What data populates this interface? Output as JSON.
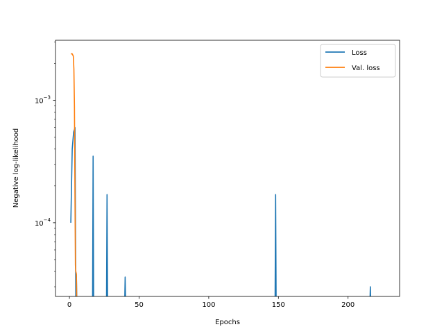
{
  "chart_data": {
    "type": "line",
    "xlabel": "Epochs",
    "ylabel": "Negative log-likelihood",
    "yscale": "log",
    "xlim": [
      -10,
      237
    ],
    "ylim": [
      2.5e-05,
      0.0031
    ],
    "x_ticks": [
      0,
      50,
      100,
      150,
      200
    ],
    "x_tick_labels": [
      "0",
      "50",
      "100",
      "150",
      "200"
    ],
    "y_ticks": [
      0.0001,
      0.001
    ],
    "y_tick_labels": [
      {
        "base": "10",
        "exp": "−4"
      },
      {
        "base": "10",
        "exp": "−3"
      }
    ],
    "grid": false,
    "legend_position": "upper right",
    "series": [
      {
        "name": "Loss",
        "color": "#1f77b4",
        "x": [
          1,
          2,
          3,
          4,
          4.6,
          5,
          5.4,
          16.6,
          17,
          17.4,
          26.6,
          27,
          27.4,
          39.6,
          40,
          40.4,
          147.6,
          148,
          148.4,
          215.6,
          216,
          216.4
        ],
        "y": [
          0.0001,
          0.0004,
          0.00055,
          0.0006,
          2e-05,
          3.7e-05,
          2e-05,
          2e-05,
          0.00035,
          2e-05,
          2e-05,
          0.00017,
          2e-05,
          2e-05,
          3.6e-05,
          2e-05,
          2e-05,
          0.00017,
          2e-05,
          2e-05,
          3e-05,
          2e-05
        ]
      },
      {
        "name": "Val. loss",
        "color": "#ff7f0e",
        "x": [
          1,
          2,
          2.8,
          3.2,
          3.6,
          4,
          4.3,
          4.6,
          5,
          5.3
        ],
        "y": [
          0.0024,
          0.0024,
          0.0023,
          0.0018,
          0.0009,
          0.00015,
          4.5e-05,
          4e-05,
          3.8e-05,
          2e-05
        ]
      }
    ]
  }
}
